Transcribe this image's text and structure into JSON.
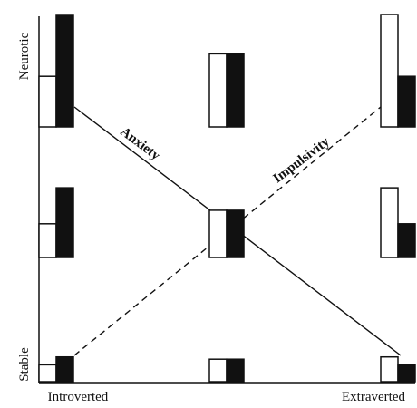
{
  "labels": {
    "y_top": "Neurotic",
    "y_bottom": "Stable",
    "x_left": "Introverted",
    "x_right": "Extraverted",
    "line_solid": "Anxiety",
    "line_dashed": "Impulsivity"
  },
  "colors": {
    "ink": "#111111",
    "white_bar": "#ffffff",
    "black_bar": "#111111"
  },
  "cells": [
    {
      "row": "top",
      "col": "left",
      "white": 0.45,
      "black": 1.0
    },
    {
      "row": "top",
      "col": "center",
      "white": 0.65,
      "black": 0.65
    },
    {
      "row": "top",
      "col": "right",
      "white": 1.0,
      "black": 0.45
    },
    {
      "row": "middle",
      "col": "left",
      "white": 0.3,
      "black": 0.62
    },
    {
      "row": "middle",
      "col": "center",
      "white": 0.42,
      "black": 0.42
    },
    {
      "row": "middle",
      "col": "right",
      "white": 0.62,
      "black": 0.3
    },
    {
      "row": "bottom",
      "col": "left",
      "white": 0.15,
      "black": 0.22
    },
    {
      "row": "bottom",
      "col": "center",
      "white": 0.2,
      "black": 0.2
    },
    {
      "row": "bottom",
      "col": "right",
      "white": 0.22,
      "black": 0.15
    }
  ]
}
